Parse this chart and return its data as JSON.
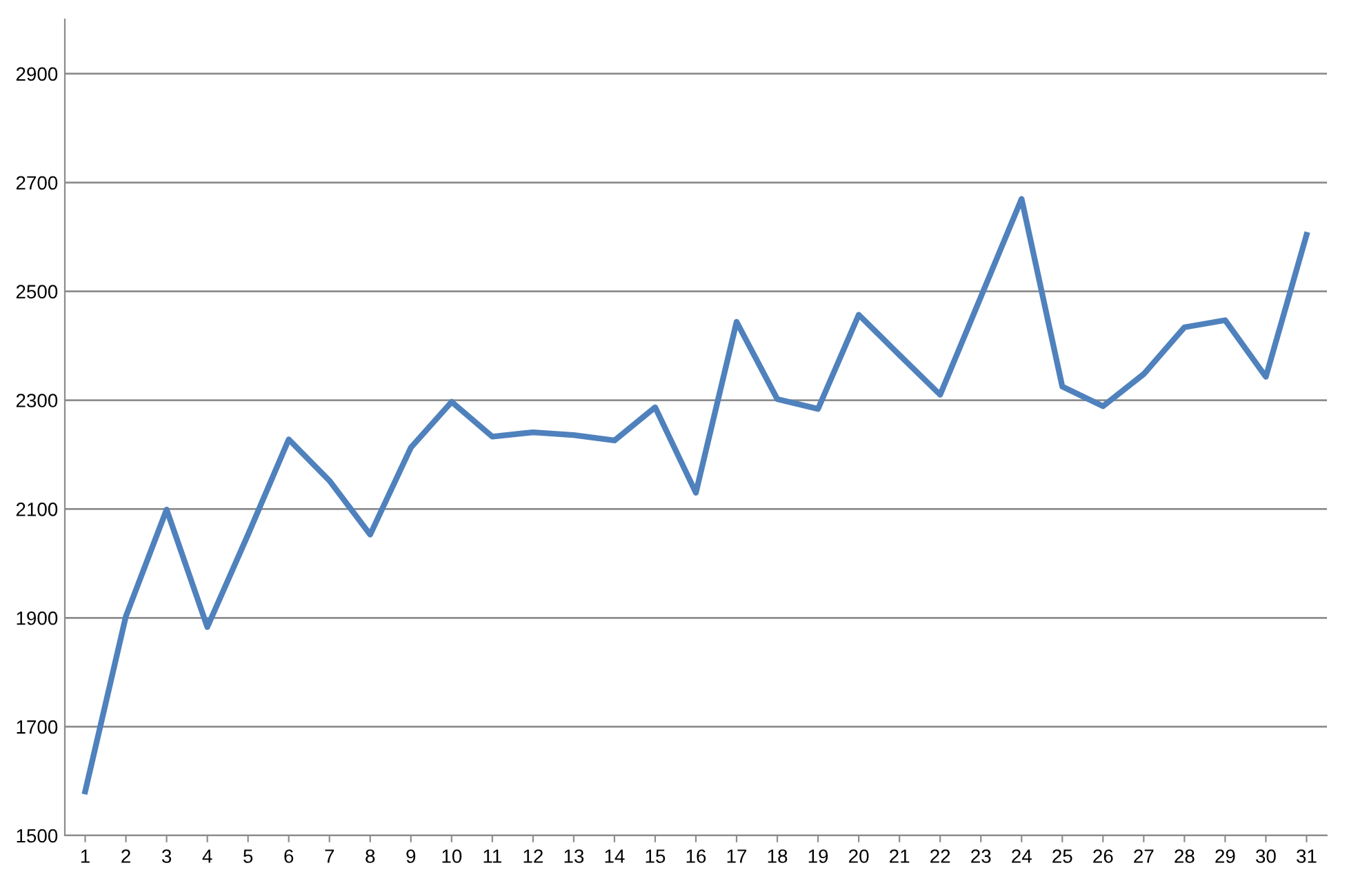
{
  "chart_data": {
    "type": "line",
    "categories": [
      "1",
      "2",
      "3",
      "4",
      "5",
      "6",
      "7",
      "8",
      "9",
      "10",
      "11",
      "12",
      "13",
      "14",
      "15",
      "16",
      "17",
      "18",
      "19",
      "20",
      "21",
      "22",
      "23",
      "24",
      "25",
      "26",
      "27",
      "28",
      "29",
      "30",
      "31"
    ],
    "series": [
      {
        "color": "#4f81bd",
        "values": [
          1581,
          1903,
          2099,
          1883,
          2053,
          2228,
          2152,
          2053,
          2213,
          2297,
          2233,
          2241,
          2236,
          2226,
          2287,
          2130,
          2444,
          2302,
          2284,
          2457,
          2383,
          2310,
          2490,
          2670,
          2325,
          2289,
          2348,
          2434,
          2447,
          2343,
          2604
        ]
      }
    ],
    "ylim": [
      1500,
      3000
    ],
    "yticks": [
      1500,
      1700,
      1900,
      2100,
      2300,
      2500,
      2700,
      2900
    ],
    "grid": "y",
    "marker": "none",
    "line_style": "solid"
  }
}
